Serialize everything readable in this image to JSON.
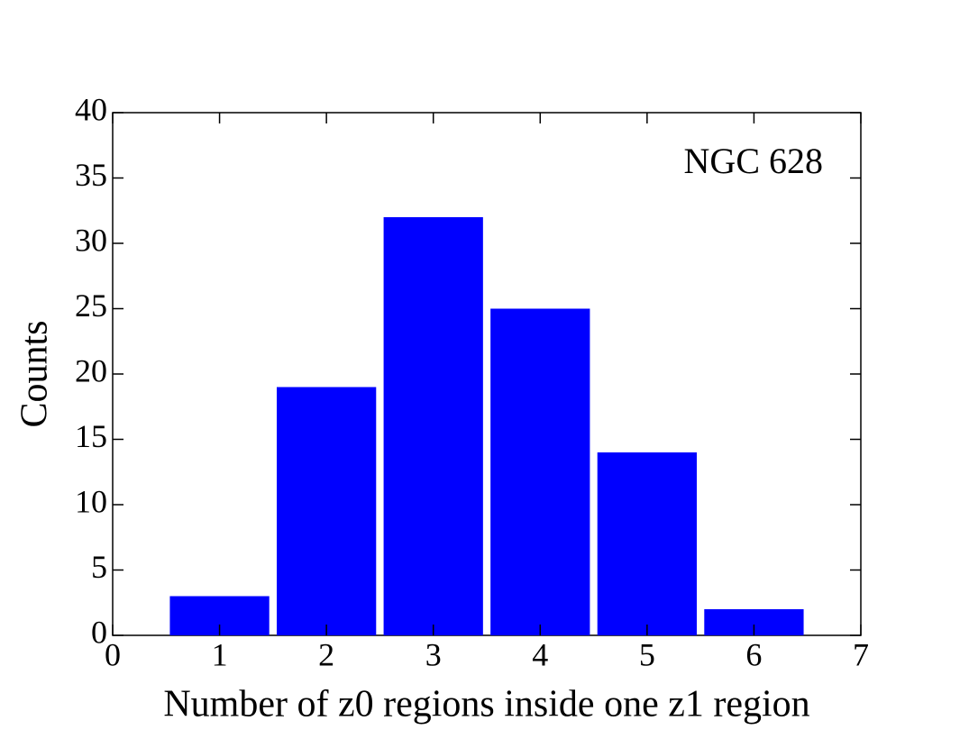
{
  "chart_data": {
    "type": "bar",
    "x": [
      1,
      2,
      3,
      4,
      5,
      6
    ],
    "values": [
      3,
      19,
      32,
      25,
      14,
      2
    ],
    "color": "#0000ff",
    "xlabel": "Number of z0 regions inside one z1 region",
    "ylabel": "Counts",
    "annotation": "NGC 628",
    "xlim": [
      0,
      7
    ],
    "xticks": [
      0,
      1,
      2,
      3,
      4,
      5,
      6,
      7
    ],
    "ylim": [
      0,
      40
    ],
    "yticks": [
      0,
      5,
      10,
      15,
      20,
      25,
      30,
      35,
      40
    ]
  }
}
